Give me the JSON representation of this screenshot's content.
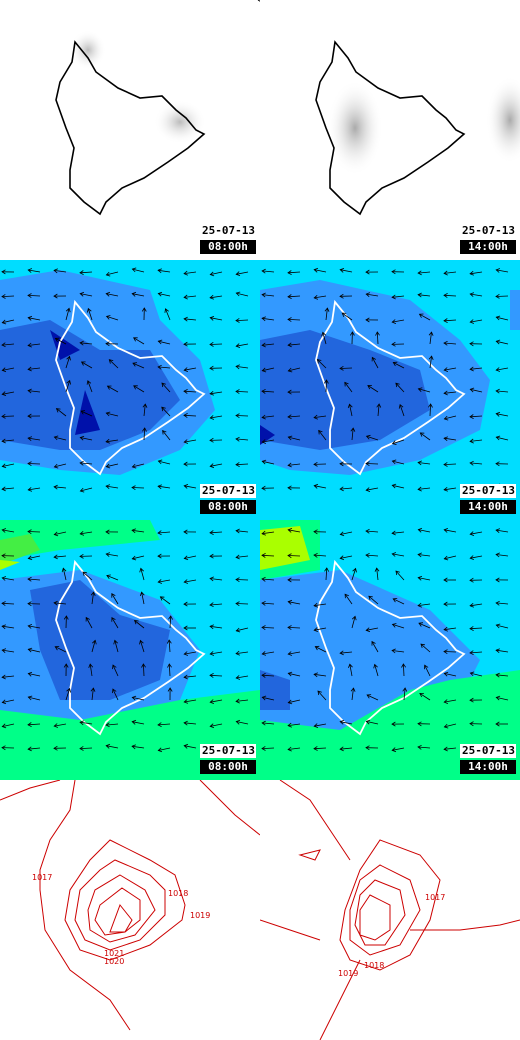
{
  "rows": [
    {
      "kind": "precip",
      "panels": [
        {
          "date": "25-07-13",
          "time": "08:00h"
        },
        {
          "date": "25-07-13",
          "time": "14:00h"
        }
      ]
    },
    {
      "kind": "wind",
      "panels": [
        {
          "date": "25-07-13",
          "time": "08:00h"
        },
        {
          "date": "25-07-13",
          "time": "14:00h"
        }
      ]
    },
    {
      "kind": "wind-temp",
      "panels": [
        {
          "date": "25-07-13",
          "time": "08:00h"
        },
        {
          "date": "25-07-13",
          "time": "14:00h"
        }
      ]
    },
    {
      "kind": "pressure",
      "panels": [
        {
          "labels": [
            "1017",
            "1018",
            "1019",
            "1021",
            "1020"
          ]
        },
        {
          "labels": [
            "1017",
            "1018",
            "1019"
          ]
        }
      ]
    }
  ],
  "colors": {
    "coast_precip": "#000000",
    "coast_wind": "#ffffff",
    "isobar": "#cc0000",
    "wind_bg": "#00ddff",
    "wind_mid": "#3399ff",
    "wind_low": "#2266dd",
    "wind_min": "#0011aa",
    "temp_green": "#00ff88",
    "temp_yellow": "#aaff00"
  }
}
